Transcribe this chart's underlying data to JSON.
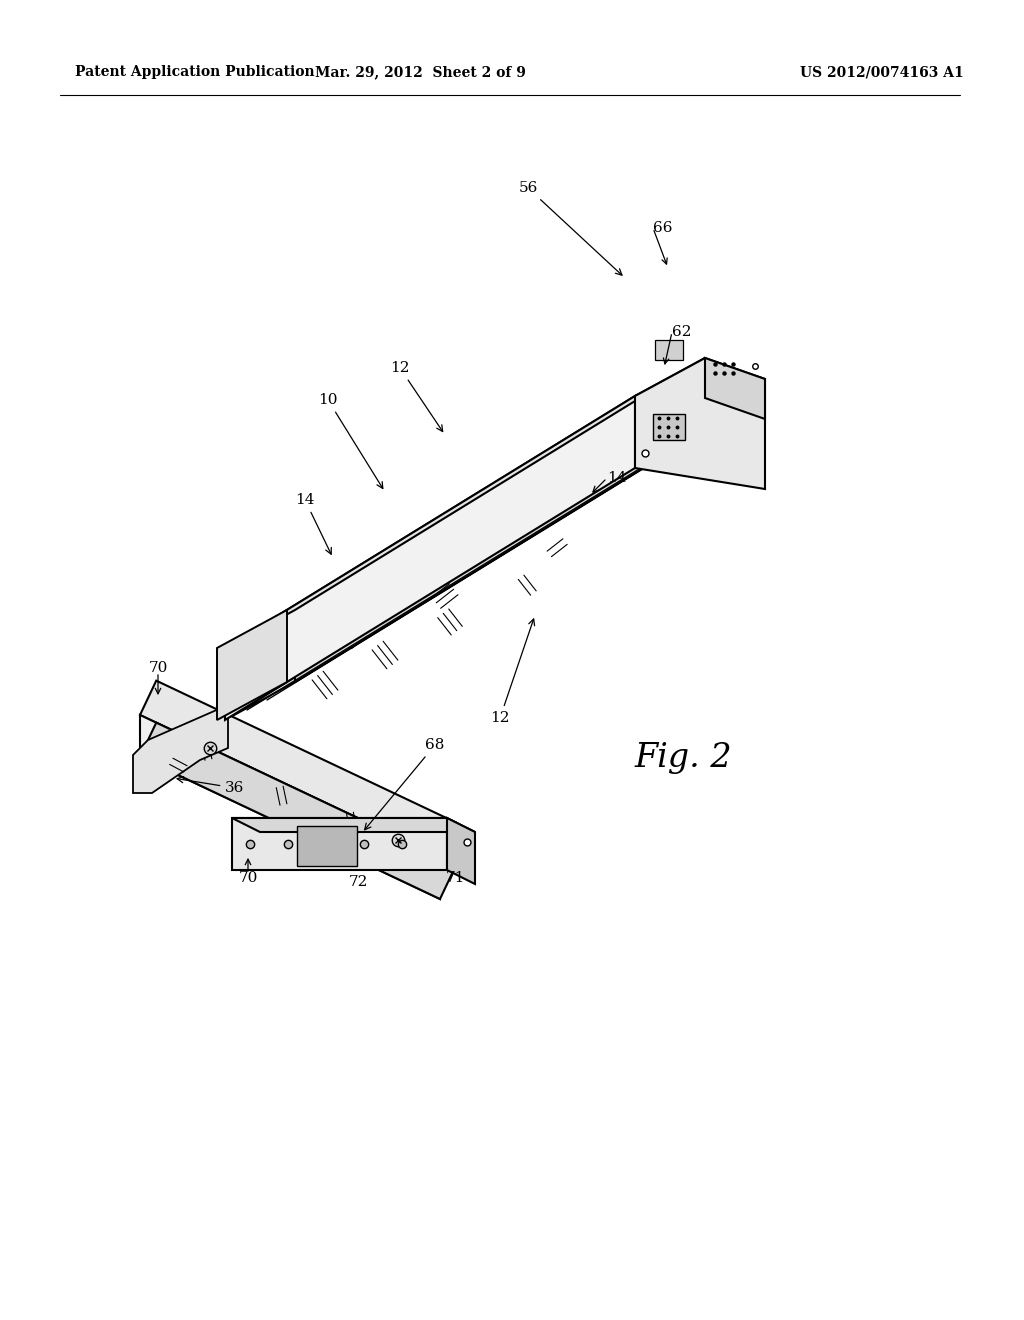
{
  "bg_color": "#ffffff",
  "header_left": "Patent Application Publication",
  "header_mid": "Mar. 29, 2012  Sheet 2 of 9",
  "header_right": "US 2012/0074163 A1",
  "fig_label": "Fig. 2"
}
